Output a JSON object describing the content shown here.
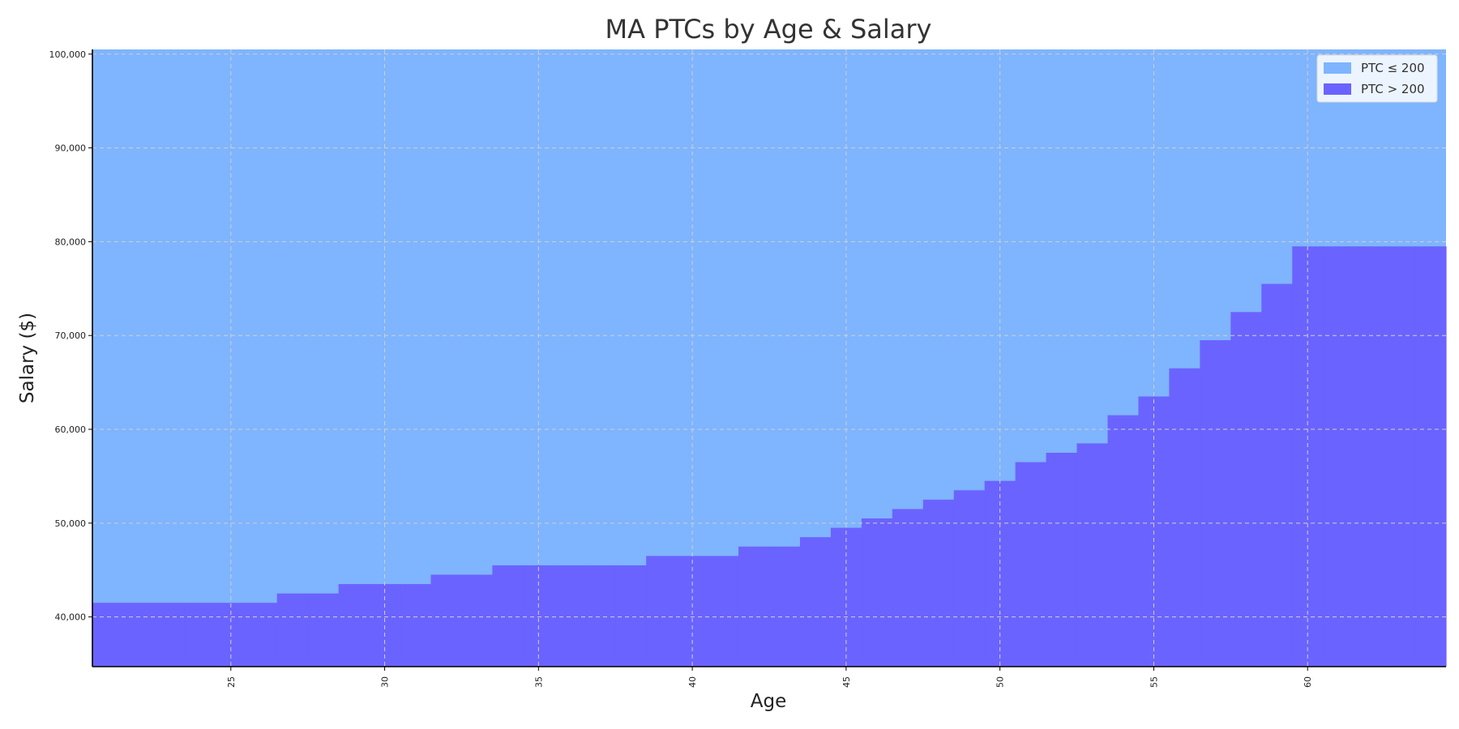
{
  "chart_data": {
    "type": "area",
    "title": "MA PTCs by Age & Salary",
    "xlabel": "Age",
    "ylabel": "Salary ($)",
    "xlim": [
      20.5,
      64.5
    ],
    "ylim": [
      34700,
      100500
    ],
    "x_ticks": [
      25,
      30,
      35,
      40,
      45,
      50,
      55,
      60
    ],
    "x_tick_labels": [
      "25",
      "30",
      "35",
      "40",
      "45",
      "50",
      "55",
      "60"
    ],
    "y_ticks": [
      40000,
      50000,
      60000,
      70000,
      80000,
      90000,
      100000
    ],
    "y_tick_labels": [
      "40,000",
      "50,000",
      "60,000",
      "70,000",
      "80,000",
      "90,000",
      "100,000"
    ],
    "grid": true,
    "legend_position": "top-right",
    "ages": [
      21,
      22,
      23,
      24,
      25,
      26,
      27,
      28,
      29,
      30,
      31,
      32,
      33,
      34,
      35,
      36,
      37,
      38,
      39,
      40,
      41,
      42,
      43,
      44,
      45,
      46,
      47,
      48,
      49,
      50,
      51,
      52,
      53,
      54,
      55,
      56,
      57,
      58,
      59,
      60,
      61,
      62,
      63,
      64
    ],
    "series": [
      {
        "name": "PTC ≤ 200",
        "color": "#7fb4ff",
        "description_range": "from threshold up to top of plot"
      },
      {
        "name": "PTC > 200",
        "color": "#6b63ff",
        "threshold_salary": [
          41500,
          41500,
          41500,
          41500,
          41500,
          41500,
          42500,
          42500,
          43500,
          43500,
          43500,
          44500,
          44500,
          45500,
          45500,
          45500,
          45500,
          45500,
          46500,
          46500,
          46500,
          47500,
          47500,
          48500,
          49500,
          50500,
          51500,
          52500,
          53500,
          54500,
          56500,
          57500,
          58500,
          61500,
          63500,
          66500,
          69500,
          72500,
          75500,
          79500,
          79500,
          79500,
          79500,
          79500
        ]
      }
    ]
  }
}
